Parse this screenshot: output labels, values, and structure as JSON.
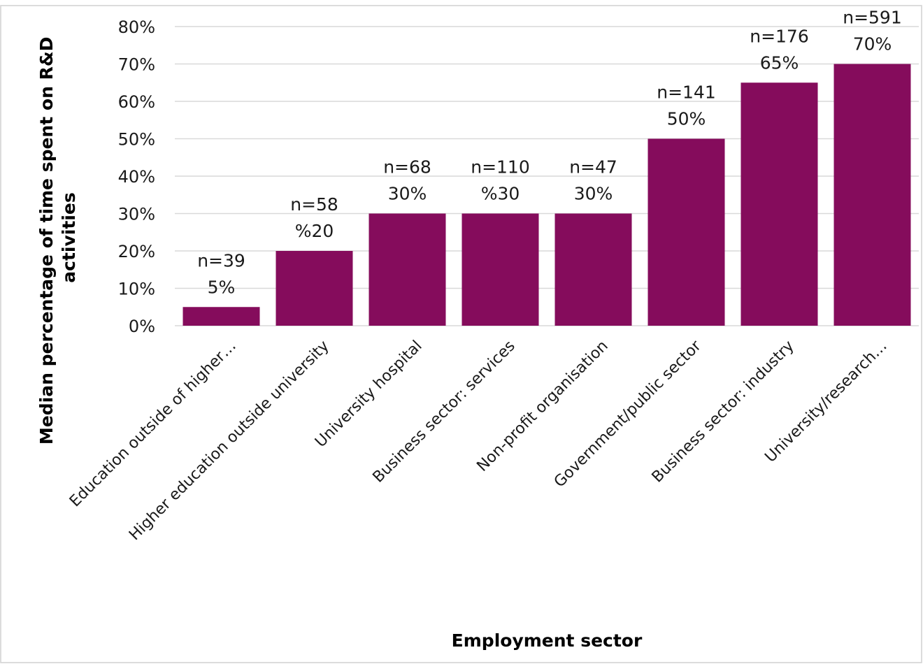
{
  "chart_data": {
    "type": "bar",
    "title": "",
    "xlabel": "Employment sector",
    "ylabel_line1": "Median percentage of time spent on R&D",
    "ylabel_line2": "activities",
    "ylim": [
      0,
      80
    ],
    "y_ticks": [
      "0%",
      "10%",
      "20%",
      "30%",
      "40%",
      "50%",
      "60%",
      "70%",
      "80%"
    ],
    "grid": true,
    "bar_color": "#850c5c",
    "categories": [
      "Education outside of higher…",
      "Higher education outside university",
      "University hospital",
      "Business sector: services",
      "Non-profit organisation",
      "Government/public sector",
      "Business sector: industry",
      "University/research…"
    ],
    "values": [
      5,
      20,
      30,
      30,
      30,
      50,
      65,
      70
    ],
    "n_labels": [
      "n=39",
      "n=58",
      "n=68",
      "n=110",
      "n=47",
      "n=141",
      "n=176",
      "n=591"
    ],
    "value_labels": [
      "5%",
      "%20",
      "30%",
      "%30",
      "30%",
      "50%",
      "65%",
      "70%"
    ]
  }
}
